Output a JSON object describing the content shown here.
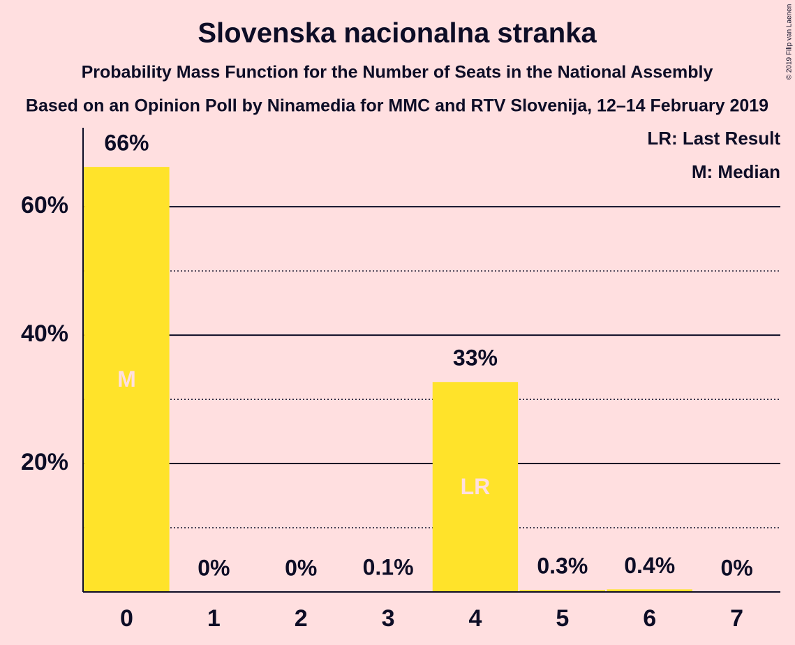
{
  "chart_data": {
    "type": "bar",
    "title": "Slovenska nacionalna stranka",
    "subtitle": "Probability Mass Function for the Number of Seats in the National Assembly",
    "subtitle2": "Based on an Opinion Poll by Ninamedia for MMC and RTV Slovenija, 12–14 February 2019",
    "copyright": "© 2019 Filip van Laenen",
    "legend": [
      "LR: Last Result",
      "M: Median"
    ],
    "categories": [
      "0",
      "1",
      "2",
      "3",
      "4",
      "5",
      "6",
      "7"
    ],
    "values": [
      66.2,
      0,
      0,
      0.1,
      32.7,
      0.3,
      0.4,
      0
    ],
    "value_labels": [
      "66%",
      "0%",
      "0%",
      "0.1%",
      "33%",
      "0.3%",
      "0.4%",
      "0%"
    ],
    "markers": [
      "M",
      null,
      null,
      null,
      "LR",
      null,
      null,
      null
    ],
    "color": "#ffe32a",
    "ylim": [
      0,
      72.3
    ],
    "yticks": [
      {
        "value": 20,
        "label": "20%"
      },
      {
        "value": 40,
        "label": "40%"
      },
      {
        "value": 60,
        "label": "60%"
      }
    ],
    "minor_yticks": [
      10,
      30,
      50
    ],
    "grid": true
  }
}
